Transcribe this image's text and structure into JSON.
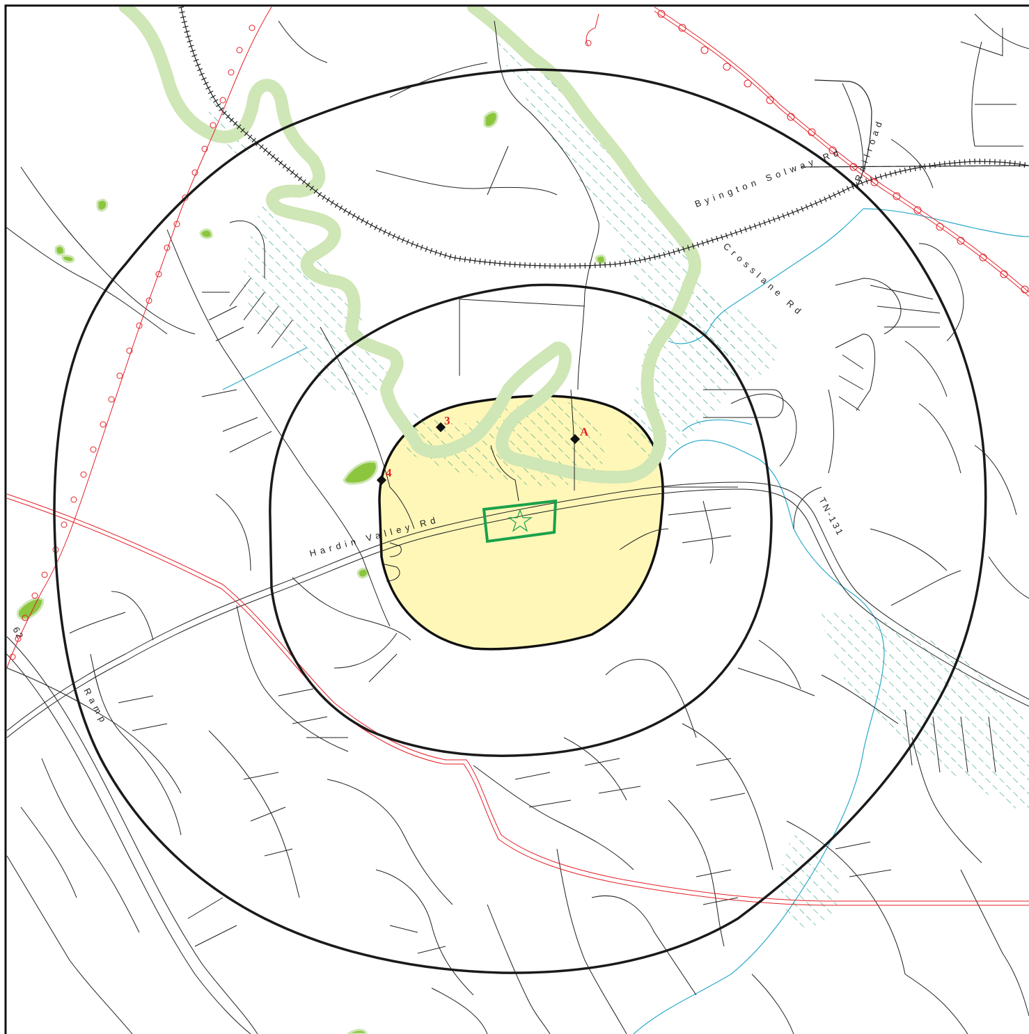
{
  "colors": {
    "background": "#ffffff",
    "frame": "#111111",
    "ring": "#1a1a1a",
    "zone_fill": "#fff7b8",
    "river": "#7ac143",
    "river_halo": "#cfe6b6",
    "wetland_hatch": "#2a9d7a",
    "stream": "#29a9c9",
    "pipeline": "#e41e26",
    "road": "#1f1f1f",
    "railroad": "#1f1f1f",
    "facility": "#1aa14a",
    "point_marker": "#111111",
    "point_label": "#e41e26",
    "woodland": "#8cc63f"
  },
  "labels": {
    "hardin_valley_rd": "Hardin Valley Rd",
    "byington_solway_rd": "Byington Solway Rd",
    "crosslane_rd": "Crosslane Rd",
    "railroad": "Railroad",
    "tn_131": "TN-131",
    "ramp": "Ramp",
    "route_62": "62"
  },
  "points": [
    {
      "id": "3",
      "label": "3"
    },
    {
      "id": "A",
      "label": "A"
    },
    {
      "id": "4",
      "label": "4"
    }
  ],
  "facility": {
    "symbol": "star-icon"
  }
}
